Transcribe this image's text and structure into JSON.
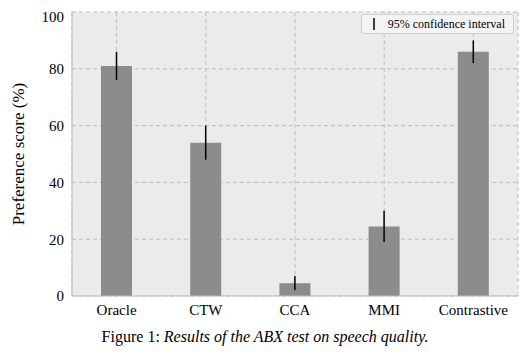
{
  "chart_data": {
    "type": "bar",
    "categories": [
      "Oracle",
      "CTW",
      "CCA",
      "MMI",
      "Contrastive"
    ],
    "values": [
      81,
      54,
      4.5,
      24.5,
      86
    ],
    "errors": [
      5,
      6,
      2.5,
      5.5,
      4
    ],
    "error_name": "95% confidence interval",
    "y_label": "Preference score (%)",
    "caption": "Figure 1: Results of the ABX test on speech quality.",
    "color": "#8c8c8c",
    "ylim": [
      0,
      100
    ],
    "yticks": [
      0,
      20,
      40,
      60,
      80,
      100
    ],
    "grid": true,
    "legend": "upper right"
  }
}
